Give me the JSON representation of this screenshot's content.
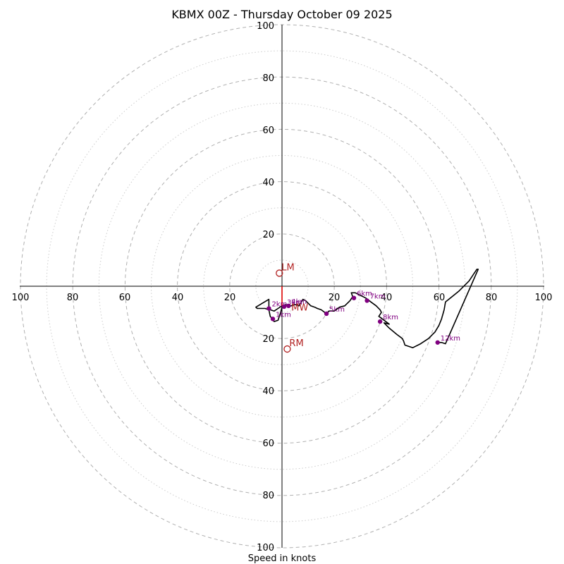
{
  "chart_data": {
    "type": "hodograph",
    "title": "KBMX 00Z - Thursday October 09 2025",
    "xlabel": "Speed in knots",
    "max_speed": 100,
    "major_ring_step": 20,
    "minor_ring_step": 10,
    "tick_labels": {
      "right": [
        "20",
        "40",
        "60",
        "80",
        "100"
      ],
      "left": [
        "20",
        "40",
        "60",
        "80",
        "100"
      ],
      "top": [
        "20",
        "40",
        "60",
        "80",
        "100"
      ],
      "bottom": [
        "20",
        "40",
        "60",
        "80",
        "100"
      ]
    },
    "colors": {
      "trace": "#000000",
      "heights": "#800080",
      "motion": "#b22222",
      "mean_wind": "#dd0000",
      "ring_major": "#b0b0b0",
      "ring_minor": "#cccccc"
    },
    "hodograph_trace": [
      [
        0.0,
        -8.0
      ],
      [
        -0.5,
        -10.0
      ],
      [
        -1.5,
        -13.0
      ],
      [
        -3.0,
        -13.5
      ],
      [
        -4.5,
        -11.5
      ],
      [
        -5.0,
        -9.0
      ],
      [
        -6.5,
        -8.5
      ],
      [
        -9.5,
        -8.5
      ],
      [
        -10.0,
        -8.0
      ],
      [
        -5.0,
        -5.0
      ],
      [
        -5.0,
        -8.0
      ],
      [
        -4.5,
        -9.0
      ],
      [
        -3.0,
        -9.5
      ],
      [
        -1.5,
        -8.5
      ],
      [
        0.0,
        -7.5
      ],
      [
        1.5,
        -7.0
      ],
      [
        2.5,
        -7.5
      ],
      [
        3.5,
        -7.5
      ],
      [
        5.0,
        -7.0
      ],
      [
        6.5,
        -7.5
      ],
      [
        8.0,
        -5.0
      ],
      [
        9.0,
        -5.5
      ],
      [
        10.0,
        -6.5
      ],
      [
        11.0,
        -7.5
      ],
      [
        12.5,
        -8.0
      ],
      [
        13.5,
        -8.5
      ],
      [
        15.0,
        -9.0
      ],
      [
        17.0,
        -10.5
      ],
      [
        18.0,
        -9.5
      ],
      [
        20.0,
        -9.5
      ],
      [
        22.0,
        -8.0
      ],
      [
        24.0,
        -7.5
      ],
      [
        26.0,
        -5.5
      ],
      [
        27.0,
        -4.0
      ],
      [
        26.5,
        -2.5
      ],
      [
        28.0,
        -2.5
      ],
      [
        30.0,
        -3.5
      ],
      [
        31.0,
        -4.0
      ],
      [
        32.0,
        -4.5
      ],
      [
        34.0,
        -6.0
      ],
      [
        36.0,
        -7.5
      ],
      [
        37.5,
        -9.0
      ],
      [
        38.0,
        -10.0
      ],
      [
        37.0,
        -11.5
      ],
      [
        39.0,
        -13.0
      ],
      [
        41.0,
        -14.5
      ],
      [
        39.0,
        -14.0
      ],
      [
        41.0,
        -16.0
      ],
      [
        44.0,
        -18.5
      ],
      [
        46.0,
        -20.0
      ],
      [
        46.5,
        -21.0
      ],
      [
        47.0,
        -22.5
      ],
      [
        50.0,
        -23.5
      ],
      [
        53.0,
        -22.0
      ],
      [
        56.0,
        -20.0
      ],
      [
        58.5,
        -17.5
      ],
      [
        60.0,
        -15.0
      ],
      [
        61.0,
        -12.5
      ],
      [
        62.0,
        -9.0
      ],
      [
        62.5,
        -6.0
      ],
      [
        67.5,
        -2.0
      ],
      [
        71.5,
        2.0
      ],
      [
        74.5,
        6.5
      ],
      [
        75.0,
        6.5
      ],
      [
        62.5,
        -22.0
      ],
      [
        61.0,
        -21.5
      ],
      [
        59.5,
        -21.5
      ]
    ],
    "height_markers": [
      {
        "label": "1km",
        "u": -3.5,
        "v": -12.5
      },
      {
        "label": "2km",
        "u": -5.0,
        "v": -8.5
      },
      {
        "label": "3km",
        "u": 0.8,
        "v": -7.8
      },
      {
        "label": "4km",
        "u": 2.5,
        "v": -7.5
      },
      {
        "label": "5km",
        "u": 17.0,
        "v": -10.5
      },
      {
        "label": "6km",
        "u": 27.5,
        "v": -4.5
      },
      {
        "label": "7km",
        "u": 32.5,
        "v": -5.5
      },
      {
        "label": "8km",
        "u": 37.5,
        "v": -13.5
      },
      {
        "label": "12km",
        "u": 59.5,
        "v": -21.5
      }
    ],
    "storm_motion": [
      {
        "label": "LM",
        "u": -1.0,
        "v": 5.0
      },
      {
        "label": "RM",
        "u": 2.0,
        "v": -24.0
      }
    ],
    "mean_wind": {
      "label": "MW",
      "u": 3.0,
      "v": -8.0
    },
    "mean_wind_segment": [
      [
        0.0,
        0.0
      ],
      [
        0.0,
        -7.5
      ]
    ]
  }
}
